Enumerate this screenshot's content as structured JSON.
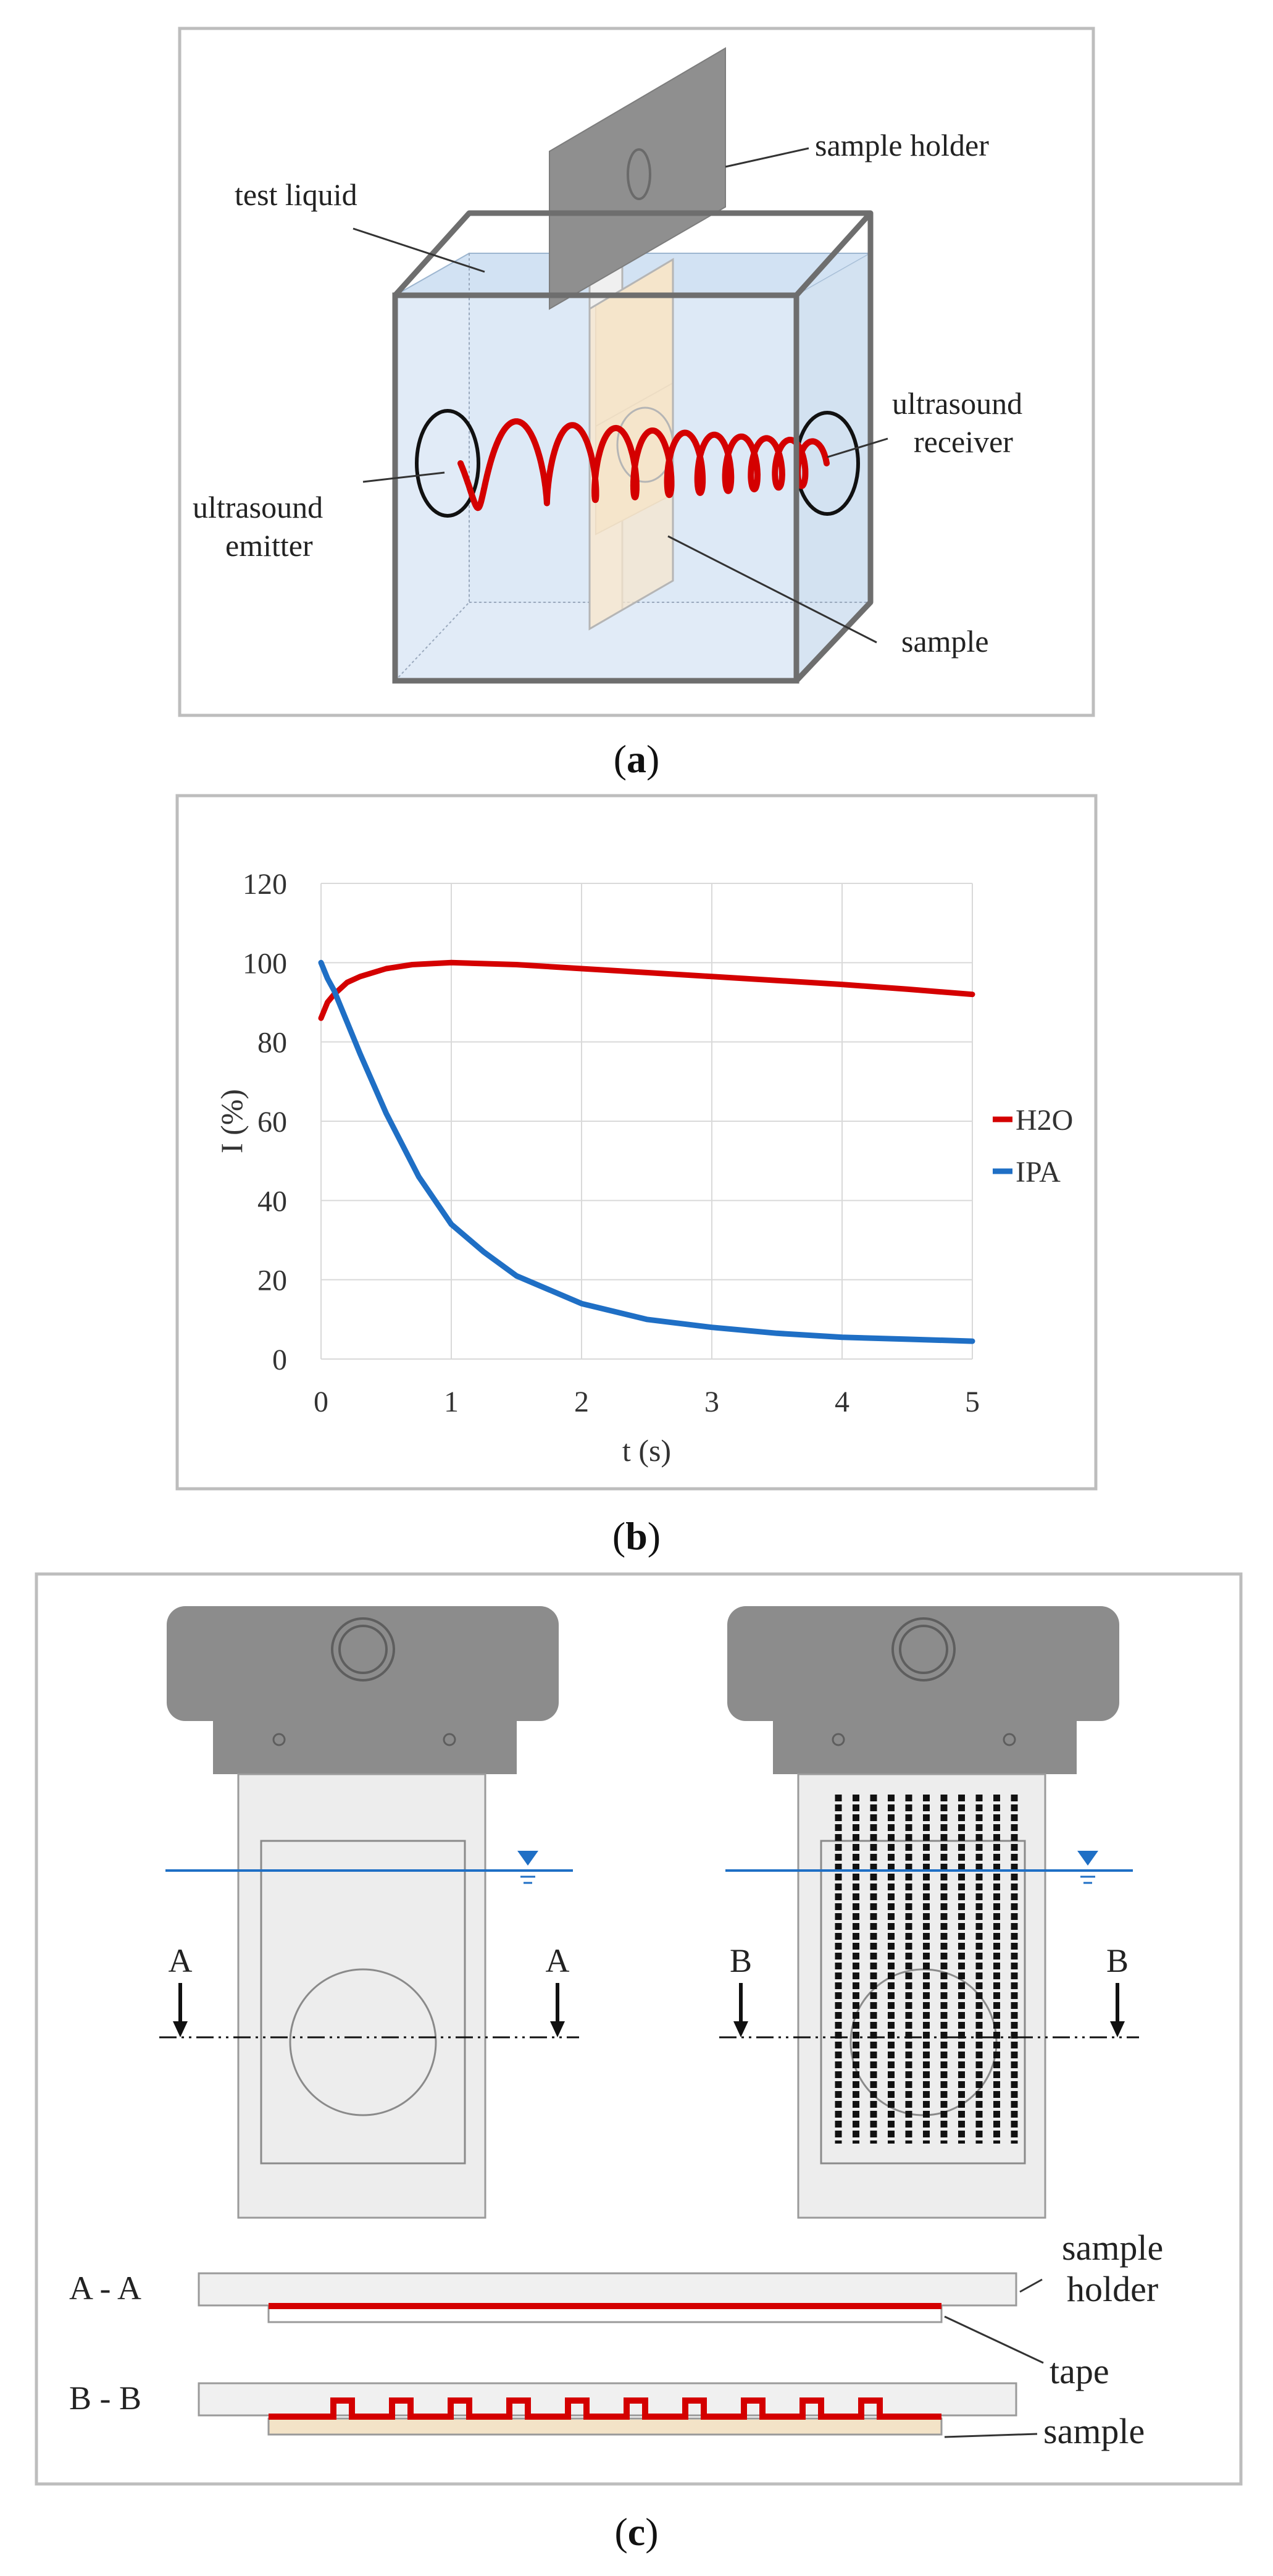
{
  "colors": {
    "accent_red": "#d40000",
    "accent_blue": "#1f6fc5",
    "frame": "#bdbdbd",
    "tank_edge": "#6e6e6e",
    "holder_gray": "#8c8c8c",
    "liquid_fill": "#dbe8f6",
    "sample_fill": "#f3e1c3",
    "panel_gray": "#ededed"
  },
  "panel_a": {
    "caption_open": "(",
    "caption_letter": "a",
    "caption_close": ")",
    "labels": {
      "sample_holder": "sample holder",
      "test_liquid": "test liquid",
      "ultrasound_receiver_1": "ultrasound",
      "ultrasound_receiver_2": "receiver",
      "ultrasound_emitter_1": "ultrasound",
      "ultrasound_emitter_2": "emitter",
      "sample": "sample"
    }
  },
  "panel_b": {
    "caption_open": "(",
    "caption_letter": "b",
    "caption_close": ")"
  },
  "chart_data": {
    "type": "line",
    "title": "",
    "xlabel": "t (s)",
    "ylabel": "I (%)",
    "xlim": [
      0,
      5
    ],
    "ylim": [
      0,
      120
    ],
    "xticks": [
      "0",
      "1",
      "2",
      "3",
      "4",
      "5"
    ],
    "yticks": [
      "0",
      "20",
      "40",
      "60",
      "80",
      "100",
      "120"
    ],
    "grid": true,
    "legend": "right",
    "series": [
      {
        "name": "H2O",
        "color": "#d40000",
        "x": [
          0,
          0.05,
          0.1,
          0.2,
          0.3,
          0.5,
          0.7,
          1.0,
          1.5,
          2.0,
          2.5,
          3.0,
          3.5,
          4.0,
          4.5,
          5.0
        ],
        "y": [
          86,
          90,
          92,
          95,
          96.5,
          98.5,
          99.5,
          100,
          99.5,
          98.5,
          97.5,
          96.5,
          95.5,
          94.5,
          93.3,
          92
        ]
      },
      {
        "name": "IPA",
        "color": "#1f6fc5",
        "x": [
          0,
          0.05,
          0.1,
          0.2,
          0.3,
          0.5,
          0.75,
          1.0,
          1.25,
          1.5,
          2.0,
          2.5,
          3.0,
          3.5,
          4.0,
          4.5,
          5.0
        ],
        "y": [
          100,
          96,
          93,
          85,
          77,
          62,
          46,
          34,
          27,
          21,
          14,
          10,
          8,
          6.5,
          5.5,
          5,
          4.5
        ]
      }
    ]
  },
  "panel_c": {
    "caption_open": "(",
    "caption_letter": "c",
    "caption_close": ")",
    "section_a_left": "A",
    "section_a_right": "A",
    "section_b_left": "B",
    "section_b_right": "B",
    "section_aa": "A - A",
    "section_bb": "B - B",
    "labels": {
      "sample_holder_1": "sample",
      "sample_holder_2": "holder",
      "tape": "tape",
      "sample": "sample"
    }
  }
}
